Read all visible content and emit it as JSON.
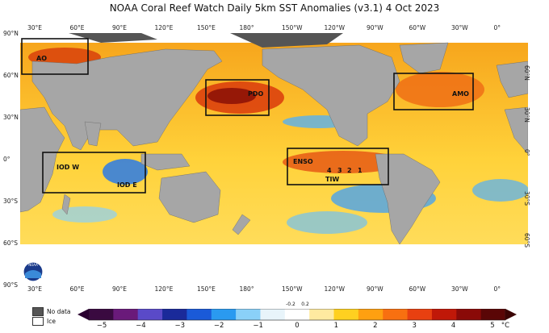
{
  "title": "NOAA Coral Reef Watch Daily 5km SST Anomalies  (v3.1)   4 Oct 2023",
  "lon_ticks": [
    "30°E",
    "60°E",
    "90°E",
    "120°E",
    "150°E",
    "180°",
    "150°W",
    "120°W",
    "90°W",
    "60°W",
    "30°W",
    "0°"
  ],
  "lat_ticks_left": [
    "90°N",
    "60°N",
    "30°N",
    "0°",
    "30°S",
    "60°S",
    "90°S"
  ],
  "lat_ticks_right": [
    "60°N",
    "30°N",
    "0°",
    "30°S",
    "60°S"
  ],
  "regions": {
    "ao": "AO",
    "pdo": "PDO",
    "amo": "AMO",
    "iod_w": "IOD W",
    "iod_e": "IOD E",
    "enso": "ENSO",
    "tiw": "TIW",
    "nino": [
      "1",
      "2",
      "3",
      "4"
    ]
  },
  "legend": {
    "no_data": "No data",
    "ice": "Ice",
    "no_data_color": "#555555",
    "ice_color": "#ffffff"
  },
  "colorbar": {
    "ticks": [
      "−5",
      "−4",
      "−3",
      "−2",
      "−1",
      "0",
      "1",
      "2",
      "3",
      "4",
      "5"
    ],
    "small_ticks": [
      "-0.2",
      "0.2"
    ],
    "unit": "°C",
    "colors": [
      "#3a0a40",
      "#6a1a7a",
      "#5a4ac8",
      "#1a2a9a",
      "#1a5ad8",
      "#2a9af0",
      "#8ad0f8",
      "#e8f4fa",
      "#ffffff",
      "#ffeaa0",
      "#ffd020",
      "#ffa010",
      "#f87010",
      "#e84010",
      "#c01808",
      "#8a0a08",
      "#5a0606"
    ]
  },
  "logo": "NOAA"
}
